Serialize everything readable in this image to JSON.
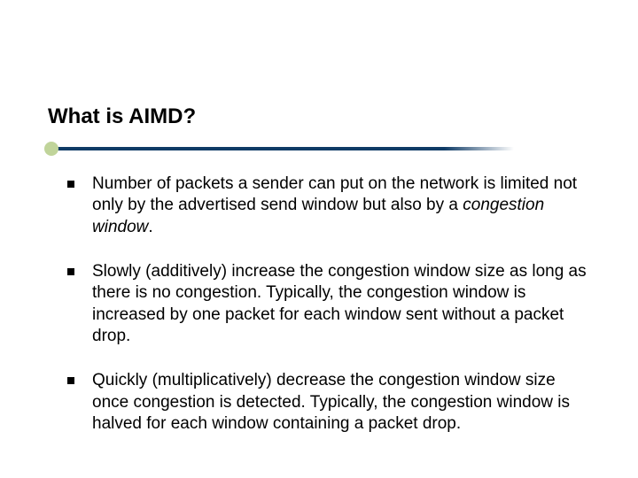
{
  "slide": {
    "title": "What is AIMD?",
    "accent_dot_color": "#c0d49a",
    "rule_color": "#0f3b66",
    "background_color": "#ffffff",
    "title_fontsize": 24,
    "body_fontsize": 19,
    "bullets": [
      {
        "pre": "Number of packets a sender can put on the network is limited not only by the advertised send window but also by a ",
        "emph": "congestion window",
        "post": "."
      },
      {
        "pre": "Slowly (additively) increase the congestion window size as long as there is no congestion.  Typically, the congestion window is increased by one packet for each window sent without a packet drop.",
        "emph": "",
        "post": ""
      },
      {
        "pre": "Quickly (multiplicatively) decrease the congestion window size once congestion is detected.  Typically, the congestion window is halved for each window containing a packet drop.",
        "emph": "",
        "post": ""
      }
    ]
  }
}
